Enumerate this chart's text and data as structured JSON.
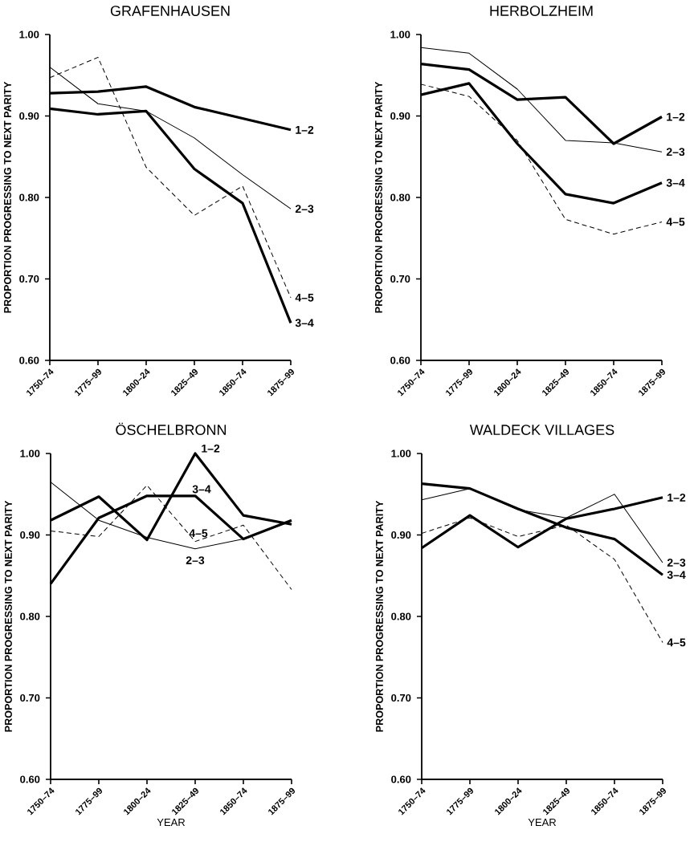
{
  "chart_data": [
    {
      "type": "line",
      "title": "GRAFENHAUSEN",
      "ylabel": "PROPORTION PROGRESSING TO NEXT PARITY",
      "categories": [
        "1750–74",
        "1775–99",
        "1800–24",
        "1825–49",
        "1850–74",
        "1875–99"
      ],
      "ylim": [
        0.6,
        1.0
      ],
      "yticks": [
        {
          "value": 0.6,
          "label": "0.60"
        },
        {
          "value": 0.7,
          "label": "0.70"
        },
        {
          "value": 0.8,
          "label": "0.80"
        },
        {
          "value": 0.9,
          "label": "0.90"
        },
        {
          "value": 1.0,
          "label": "1.00"
        }
      ],
      "legend": false,
      "grid": false,
      "marker": "none",
      "series": [
        {
          "name": "1–2",
          "color": "#000000",
          "line_style": "solid",
          "values": [
            0.928,
            0.93,
            0.936,
            0.911,
            0.897,
            0.883
          ]
        },
        {
          "name": "2–3",
          "color": "#000000",
          "line_style": "solid",
          "values": [
            0.96,
            0.915,
            0.906,
            0.873,
            0.828,
            0.786
          ]
        },
        {
          "name": "3–4",
          "color": "#000000",
          "line_style": "solid",
          "values": [
            0.909,
            0.902,
            0.906,
            0.835,
            0.793,
            0.646
          ]
        },
        {
          "name": "4–5",
          "color": "#000000",
          "line_style": "dashed",
          "values": [
            0.947,
            0.972,
            0.837,
            0.778,
            0.814,
            0.677
          ]
        }
      ]
    },
    {
      "type": "line",
      "title": "HERBOLZHEIM",
      "ylabel": "PROPORTION PROGRESSING TO NEXT PARITY",
      "categories": [
        "1750–74",
        "1775–99",
        "1800–24",
        "1825–49",
        "1850–74",
        "1875–99"
      ],
      "ylim": [
        0.6,
        1.0
      ],
      "yticks": [
        {
          "value": 0.6,
          "label": "0.60"
        },
        {
          "value": 0.7,
          "label": "0.70"
        },
        {
          "value": 0.8,
          "label": "0.80"
        },
        {
          "value": 0.9,
          "label": "0.90"
        },
        {
          "value": 1.0,
          "label": "1.00"
        }
      ],
      "legend": false,
      "grid": false,
      "marker": "none",
      "series": [
        {
          "name": "1–2",
          "color": "#000000",
          "line_style": "solid",
          "values": [
            0.964,
            0.957,
            0.92,
            0.923,
            0.866,
            0.899
          ]
        },
        {
          "name": "2–3",
          "color": "#000000",
          "line_style": "solid",
          "values": [
            0.984,
            0.977,
            0.933,
            0.87,
            0.867,
            0.856
          ]
        },
        {
          "name": "3–4",
          "color": "#000000",
          "line_style": "solid",
          "values": [
            0.926,
            0.94,
            0.866,
            0.804,
            0.793,
            0.818
          ]
        },
        {
          "name": "4–5",
          "color": "#000000",
          "line_style": "dashed",
          "values": [
            0.939,
            0.924,
            0.87,
            0.773,
            0.755,
            0.77
          ]
        }
      ]
    },
    {
      "type": "line",
      "title": "ÖSCHELBRONN",
      "ylabel": "PROPORTION PROGRESSING TO NEXT PARITY",
      "xlabel": "YEAR",
      "categories": [
        "1750–74",
        "1775–99",
        "1800–24",
        "1825–49",
        "1850–74",
        "1875–99"
      ],
      "ylim": [
        0.6,
        1.0
      ],
      "yticks": [
        {
          "value": 0.6,
          "label": "0.60"
        },
        {
          "value": 0.7,
          "label": "0.70"
        },
        {
          "value": 0.8,
          "label": "0.80"
        },
        {
          "value": 0.9,
          "label": "0.90"
        },
        {
          "value": 1.0,
          "label": "1.00"
        }
      ],
      "legend": false,
      "grid": false,
      "marker": "none",
      "series": [
        {
          "name": "1–2",
          "color": "#000000",
          "line_style": "solid",
          "values": [
            0.918,
            0.947,
            0.894,
            1.0,
            0.924,
            0.913
          ]
        },
        {
          "name": "2–3",
          "color": "#000000",
          "line_style": "solid",
          "values": [
            0.965,
            0.918,
            0.897,
            0.883,
            0.895,
            0.917
          ]
        },
        {
          "name": "3–4",
          "color": "#000000",
          "line_style": "solid",
          "values": [
            0.84,
            0.921,
            0.948,
            0.948,
            0.895,
            0.918
          ]
        },
        {
          "name": "4–5",
          "color": "#000000",
          "line_style": "dashed",
          "values": [
            0.905,
            0.898,
            0.961,
            0.892,
            0.912,
            0.833
          ]
        }
      ]
    },
    {
      "type": "line",
      "title": "WALDECK VILLAGES",
      "ylabel": "PROPORTION PROGRESSING TO NEXT PARITY",
      "xlabel": "YEAR",
      "categories": [
        "1750–74",
        "1775–99",
        "1800–24",
        "1825–49",
        "1850–74",
        "1875–99"
      ],
      "ylim": [
        0.6,
        1.0
      ],
      "yticks": [
        {
          "value": 0.6,
          "label": "0.60"
        },
        {
          "value": 0.7,
          "label": "0.70"
        },
        {
          "value": 0.8,
          "label": "0.80"
        },
        {
          "value": 0.9,
          "label": "0.90"
        },
        {
          "value": 1.0,
          "label": "1.00"
        }
      ],
      "legend": false,
      "grid": false,
      "marker": "none",
      "series": [
        {
          "name": "1–2",
          "color": "#000000",
          "line_style": "solid",
          "values": [
            0.884,
            0.924,
            0.885,
            0.92,
            0.932,
            0.946
          ]
        },
        {
          "name": "2–3",
          "color": "#000000",
          "line_style": "solid",
          "values": [
            0.943,
            0.957,
            0.931,
            0.921,
            0.95,
            0.866
          ]
        },
        {
          "name": "3–4",
          "color": "#000000",
          "line_style": "solid",
          "values": [
            0.963,
            0.957,
            0.932,
            0.909,
            0.895,
            0.851
          ]
        },
        {
          "name": "4–5",
          "color": "#000000",
          "line_style": "dashed",
          "values": [
            0.902,
            0.921,
            0.898,
            0.912,
            0.87,
            0.768
          ]
        }
      ]
    }
  ]
}
